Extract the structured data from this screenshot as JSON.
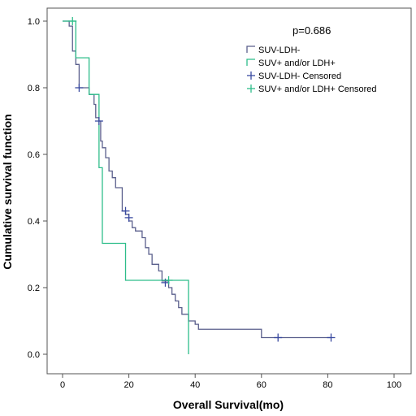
{
  "chart_data": {
    "type": "line",
    "subtype": "kaplan-meier-step",
    "xlabel": "Overall Survival(mo)",
    "ylabel": "Cumulative survival function",
    "xlim": [
      0,
      100
    ],
    "ylim": [
      0,
      1.0
    ],
    "x_ticks": [
      "0",
      "20",
      "40",
      "60",
      "80",
      "100"
    ],
    "x_tick_values": [
      0,
      20,
      40,
      60,
      80,
      100
    ],
    "y_ticks": [
      "0.0",
      "0.2",
      "0.4",
      "0.6",
      "0.8",
      "1.0"
    ],
    "y_tick_values": [
      0.0,
      0.2,
      0.4,
      0.6,
      0.8,
      1.0
    ],
    "annotation": "p=0.686",
    "legend_position": "top-right",
    "legend": [
      "SUV-LDH-",
      "SUV+ and/or LDH+",
      "SUV-LDH- Censored",
      "SUV+ and/or LDH+ Censored"
    ],
    "colors": {
      "suv_ldh_neg": "#5a5f8c",
      "suv_ldh_pos": "#2ebd8a",
      "censor_neg": "#3a4aa0",
      "censor_pos": "#2ebd8a"
    },
    "series": [
      {
        "name": "SUV-LDH-",
        "x": [
          0,
          2.0,
          3.0,
          4.0,
          5.0,
          8.0,
          9.5,
          10.0,
          11.0,
          11.5,
          12.0,
          13.0,
          14.0,
          15.0,
          16.0,
          18.0,
          19.0,
          20.0,
          21.0,
          22.0,
          24.0,
          25.0,
          26.0,
          27.0,
          29.0,
          30.0,
          32.0,
          33.0,
          34.0,
          35.0,
          36.0,
          38.0,
          40.0,
          41.0,
          60.0,
          81.0
        ],
        "y": [
          1.0,
          0.985,
          0.91,
          0.87,
          0.8,
          0.78,
          0.75,
          0.71,
          0.7,
          0.64,
          0.62,
          0.59,
          0.55,
          0.53,
          0.5,
          0.43,
          0.42,
          0.4,
          0.38,
          0.37,
          0.35,
          0.32,
          0.3,
          0.27,
          0.25,
          0.22,
          0.2,
          0.18,
          0.16,
          0.14,
          0.12,
          0.1,
          0.09,
          0.075,
          0.05,
          0.05
        ]
      },
      {
        "name": "SUV+ and/or LDH+",
        "x": [
          0,
          4.0,
          8.0,
          11.0,
          12.0,
          19.0,
          38.0
        ],
        "y": [
          1.0,
          0.89,
          0.78,
          0.56,
          0.333,
          0.222,
          0.0
        ]
      }
    ],
    "censored": [
      {
        "series": "SUV-LDH- Censored",
        "x": [
          5.0,
          11.0,
          19.0,
          20.0,
          31.0,
          65.0,
          81.0
        ],
        "y": [
          0.8,
          0.7,
          0.43,
          0.41,
          0.215,
          0.05,
          0.05
        ]
      },
      {
        "series": "SUV+ and/or LDH+ Censored",
        "x": [
          3.0,
          32.0
        ],
        "y": [
          1.0,
          0.222
        ]
      }
    ]
  }
}
